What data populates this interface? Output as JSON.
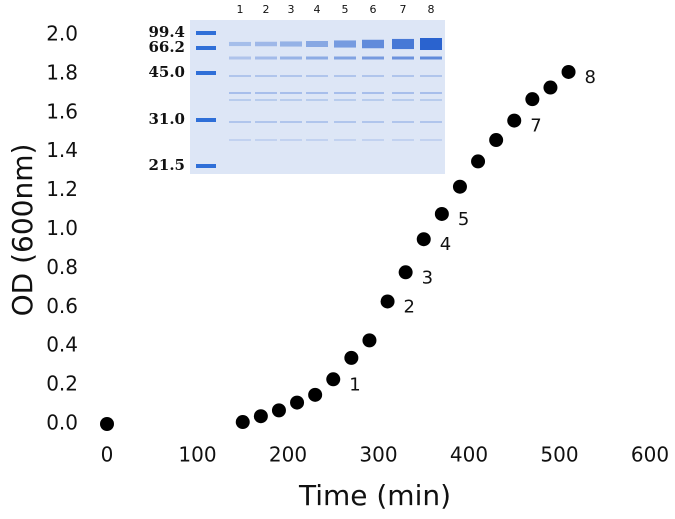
{
  "chart_data": {
    "type": "scatter",
    "x_label": "Time (min)",
    "y_label": "OD (600nm)",
    "x": [
      0,
      150,
      170,
      190,
      210,
      230,
      250,
      270,
      290,
      310,
      330,
      350,
      370,
      390,
      410,
      430,
      450,
      470,
      490,
      510
    ],
    "values": [
      0.0,
      0.01,
      0.04,
      0.07,
      0.11,
      0.15,
      0.23,
      0.34,
      0.43,
      0.63,
      0.78,
      0.95,
      1.08,
      1.22,
      1.35,
      1.46,
      1.56,
      1.67,
      1.73,
      1.81
    ],
    "point_labels": [
      null,
      null,
      null,
      null,
      null,
      null,
      "1",
      null,
      null,
      "2",
      "3",
      "4",
      "5",
      null,
      null,
      null,
      "7",
      null,
      null,
      "8"
    ],
    "color": "#000000",
    "xlim": [
      0,
      600
    ],
    "xticks": [
      0,
      100,
      200,
      300,
      400,
      500,
      600
    ],
    "ylim": [
      0,
      2.0
    ],
    "yticks": [
      {
        "value": 0,
        "label": "0.0"
      },
      {
        "value": 0.2,
        "label": "0.2"
      },
      {
        "value": 0.4,
        "label": "0.4"
      },
      {
        "value": 0.6,
        "label": "0.6"
      },
      {
        "value": 0.8,
        "label": "0.8"
      },
      {
        "value": 1.0,
        "label": "1.0"
      },
      {
        "value": 1.2,
        "label": "1.2"
      },
      {
        "value": 1.4,
        "label": "1.4"
      },
      {
        "value": 1.6,
        "label": "1.6"
      },
      {
        "value": 1.8,
        "label": "1.8"
      },
      {
        "value": 2.0,
        "label": "2.0"
      }
    ],
    "inset": {
      "lanes": [
        "1",
        "2",
        "3",
        "4",
        "5",
        "6",
        "7",
        "8"
      ],
      "markers": [
        "99.4",
        "66.2",
        "45.0",
        "31.0",
        "21.5"
      ]
    }
  }
}
